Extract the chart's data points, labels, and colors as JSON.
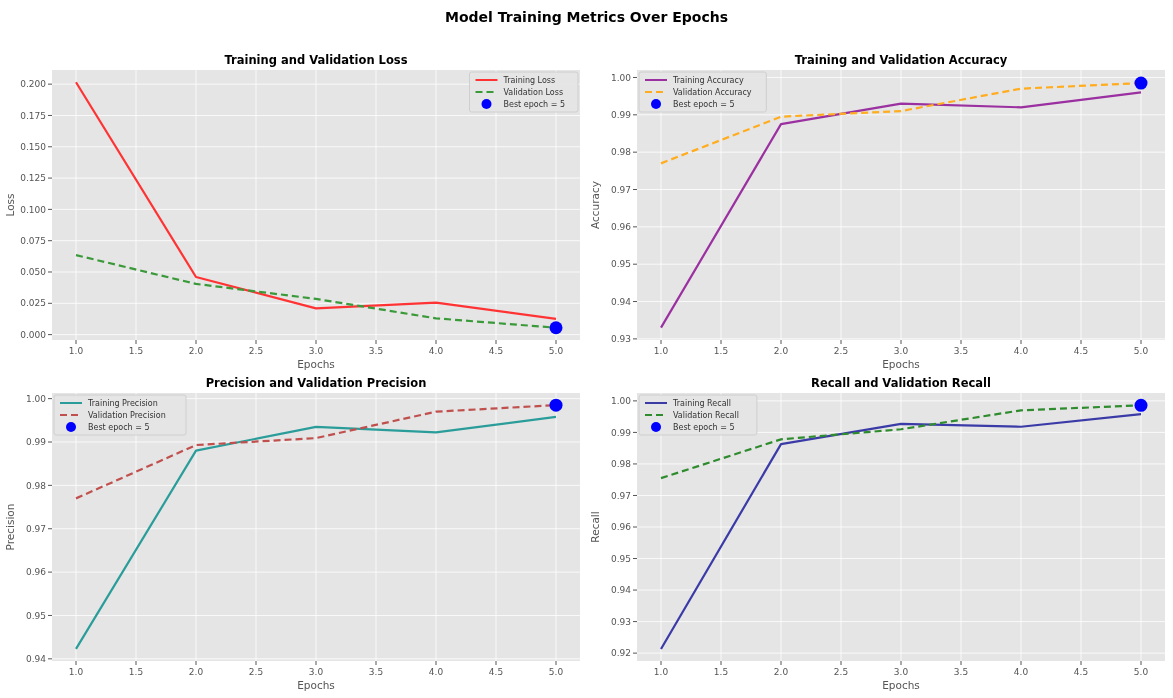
{
  "chart_data": [
    {
      "type": "line",
      "title": "Training and Validation Loss",
      "annotations": [
        "Model Training Metrics Over Epochs"
      ],
      "xlabel": "Epochs",
      "ylabel": "Loss",
      "x": [
        1,
        2,
        3,
        4,
        5
      ],
      "xlim": [
        0.8,
        5.2
      ],
      "xticks": [
        {
          "value": 1,
          "label": "1.0"
        },
        {
          "value": 1.5,
          "label": "1.5"
        },
        {
          "value": 2,
          "label": "2.0"
        },
        {
          "value": 2.5,
          "label": "2.5"
        },
        {
          "value": 3,
          "label": "3.0"
        },
        {
          "value": 3.5,
          "label": "3.5"
        },
        {
          "value": 4,
          "label": "4.0"
        },
        {
          "value": 4.5,
          "label": "4.5"
        },
        {
          "value": 5,
          "label": "5.0"
        }
      ],
      "ylim": [
        -0.0043,
        0.2113
      ],
      "yticks": [
        {
          "value": 0,
          "label": "0.000"
        },
        {
          "value": 0.025,
          "label": "0.025"
        },
        {
          "value": 0.05,
          "label": "0.050"
        },
        {
          "value": 0.075,
          "label": "0.075"
        },
        {
          "value": 0.1,
          "label": "0.100"
        },
        {
          "value": 0.125,
          "label": "0.125"
        },
        {
          "value": 0.15,
          "label": "0.150"
        },
        {
          "value": 0.175,
          "label": "0.175"
        },
        {
          "value": 0.2,
          "label": "0.200"
        }
      ],
      "grid": true,
      "legend": "top right",
      "series": [
        {
          "name": "Training Loss",
          "color": "#ff3333",
          "line_style": "solid",
          "values": [
            0.2015,
            0.046,
            0.021,
            0.0255,
            0.0125
          ]
        },
        {
          "name": "Validation Loss",
          "color": "#3a9a3a",
          "line_style": "dashed",
          "values": [
            0.0635,
            0.0405,
            0.0285,
            0.013,
            0.0055
          ]
        },
        {
          "name": "Best epoch = 5",
          "type": "scatter",
          "color": "#0000ff",
          "values": [
            null,
            null,
            null,
            null,
            0.0055
          ]
        }
      ]
    },
    {
      "type": "line",
      "title": "Training and Validation Accuracy",
      "xlabel": "Epochs",
      "ylabel": "Accuracy",
      "x": [
        1,
        2,
        3,
        4,
        5
      ],
      "xlim": [
        0.8,
        5.2
      ],
      "xticks": [
        {
          "value": 1,
          "label": "1.0"
        },
        {
          "value": 1.5,
          "label": "1.5"
        },
        {
          "value": 2,
          "label": "2.0"
        },
        {
          "value": 2.5,
          "label": "2.5"
        },
        {
          "value": 3,
          "label": "3.0"
        },
        {
          "value": 3.5,
          "label": "3.5"
        },
        {
          "value": 4,
          "label": "4.0"
        },
        {
          "value": 4.5,
          "label": "4.5"
        },
        {
          "value": 5,
          "label": "5.0"
        }
      ],
      "ylim": [
        0.9297,
        1.002
      ],
      "yticks": [
        {
          "value": 0.93,
          "label": "0.93"
        },
        {
          "value": 0.94,
          "label": "0.94"
        },
        {
          "value": 0.95,
          "label": "0.95"
        },
        {
          "value": 0.96,
          "label": "0.96"
        },
        {
          "value": 0.97,
          "label": "0.97"
        },
        {
          "value": 0.98,
          "label": "0.98"
        },
        {
          "value": 0.99,
          "label": "0.99"
        },
        {
          "value": 1,
          "label": "1.00"
        }
      ],
      "grid": true,
      "legend": "top left",
      "series": [
        {
          "name": "Training Accuracy",
          "color": "#9b30a0",
          "line_style": "solid",
          "values": [
            0.933,
            0.9875,
            0.993,
            0.992,
            0.996
          ]
        },
        {
          "name": "Validation Accuracy",
          "color": "#ffad1f",
          "line_style": "dashed",
          "values": [
            0.977,
            0.9895,
            0.991,
            0.997,
            0.9985
          ]
        },
        {
          "name": "Best epoch = 5",
          "type": "scatter",
          "color": "#0000ff",
          "values": [
            null,
            null,
            null,
            null,
            0.9985
          ]
        }
      ]
    },
    {
      "type": "line",
      "title": "Precision and Validation Precision",
      "xlabel": "Epochs",
      "ylabel": "Precision",
      "x": [
        1,
        2,
        3,
        4,
        5
      ],
      "xlim": [
        0.8,
        5.2
      ],
      "xticks": [
        {
          "value": 1,
          "label": "1.0"
        },
        {
          "value": 1.5,
          "label": "1.5"
        },
        {
          "value": 2,
          "label": "2.0"
        },
        {
          "value": 2.5,
          "label": "2.5"
        },
        {
          "value": 3,
          "label": "3.0"
        },
        {
          "value": 3.5,
          "label": "3.5"
        },
        {
          "value": 4,
          "label": "4.0"
        },
        {
          "value": 4.5,
          "label": "4.5"
        },
        {
          "value": 5,
          "label": "5.0"
        }
      ],
      "ylim": [
        0.9395,
        1.0013
      ],
      "yticks": [
        {
          "value": 0.94,
          "label": "0.94"
        },
        {
          "value": 0.95,
          "label": "0.95"
        },
        {
          "value": 0.96,
          "label": "0.96"
        },
        {
          "value": 0.97,
          "label": "0.97"
        },
        {
          "value": 0.98,
          "label": "0.98"
        },
        {
          "value": 0.99,
          "label": "0.99"
        },
        {
          "value": 1,
          "label": "1.00"
        }
      ],
      "grid": true,
      "legend": "top left",
      "series": [
        {
          "name": "Training Precision",
          "color": "#2a9d9a",
          "line_style": "solid",
          "values": [
            0.9423,
            0.988,
            0.9935,
            0.9922,
            0.9958
          ]
        },
        {
          "name": "Validation Precision",
          "color": "#c0504d",
          "line_style": "dashed",
          "values": [
            0.977,
            0.9893,
            0.9909,
            0.997,
            0.9985
          ]
        },
        {
          "name": "Best epoch = 5",
          "type": "scatter",
          "color": "#0000ff",
          "values": [
            null,
            null,
            null,
            null,
            0.9985
          ]
        }
      ]
    },
    {
      "type": "line",
      "title": "Recall and Validation Recall",
      "xlabel": "Epochs",
      "ylabel": "Recall",
      "x": [
        1,
        2,
        3,
        4,
        5
      ],
      "xlim": [
        0.8,
        5.2
      ],
      "xticks": [
        {
          "value": 1,
          "label": "1.0"
        },
        {
          "value": 1.5,
          "label": "1.5"
        },
        {
          "value": 2,
          "label": "2.0"
        },
        {
          "value": 2.5,
          "label": "2.5"
        },
        {
          "value": 3,
          "label": "3.0"
        },
        {
          "value": 3.5,
          "label": "3.5"
        },
        {
          "value": 4,
          "label": "4.0"
        },
        {
          "value": 4.5,
          "label": "4.5"
        },
        {
          "value": 5,
          "label": "5.0"
        }
      ],
      "ylim": [
        0.9175,
        1.0025
      ],
      "yticks": [
        {
          "value": 0.92,
          "label": "0.92"
        },
        {
          "value": 0.93,
          "label": "0.93"
        },
        {
          "value": 0.94,
          "label": "0.94"
        },
        {
          "value": 0.95,
          "label": "0.95"
        },
        {
          "value": 0.96,
          "label": "0.96"
        },
        {
          "value": 0.97,
          "label": "0.97"
        },
        {
          "value": 0.98,
          "label": "0.98"
        },
        {
          "value": 0.99,
          "label": "0.99"
        },
        {
          "value": 1,
          "label": "1.00"
        }
      ],
      "grid": true,
      "legend": "top left",
      "series": [
        {
          "name": "Training Recall",
          "color": "#3b3ba8",
          "line_style": "solid",
          "values": [
            0.9213,
            0.9863,
            0.9927,
            0.9918,
            0.9958
          ]
        },
        {
          "name": "Validation Recall",
          "color": "#2e8b2e",
          "line_style": "dashed",
          "values": [
            0.9755,
            0.9878,
            0.991,
            0.997,
            0.9986
          ]
        },
        {
          "name": "Best epoch = 5",
          "type": "scatter",
          "color": "#0000ff",
          "values": [
            null,
            null,
            null,
            null,
            0.9986
          ]
        }
      ]
    }
  ]
}
